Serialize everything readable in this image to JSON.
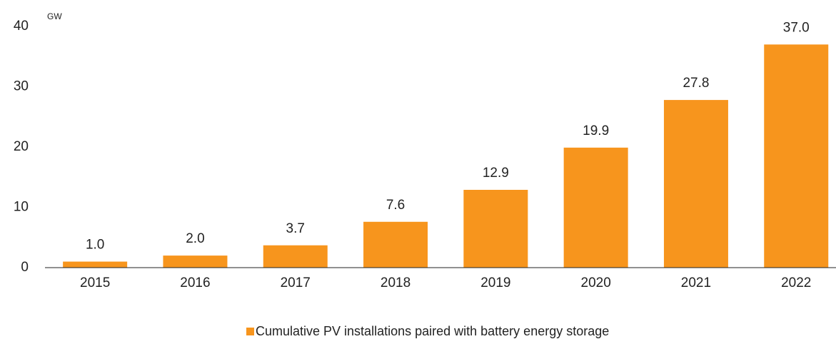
{
  "chart_data": {
    "type": "bar",
    "y_unit_label": "GW",
    "categories": [
      "2015",
      "2016",
      "2017",
      "2018",
      "2019",
      "2020",
      "2021",
      "2022"
    ],
    "series": [
      {
        "name": "Cumulative PV installations paired with battery energy storage",
        "color": "#f7951d",
        "values": [
          1.0,
          2.0,
          3.7,
          7.6,
          12.9,
          19.9,
          27.8,
          37.0
        ],
        "value_labels": [
          "1.0",
          "2.0",
          "3.7",
          "7.6",
          "12.9",
          "19.9",
          "27.8",
          "37.0"
        ]
      }
    ],
    "ylim": [
      0,
      40
    ],
    "yticks": [
      0,
      10,
      20,
      30,
      40
    ],
    "grid": false,
    "legend": "bottom"
  }
}
